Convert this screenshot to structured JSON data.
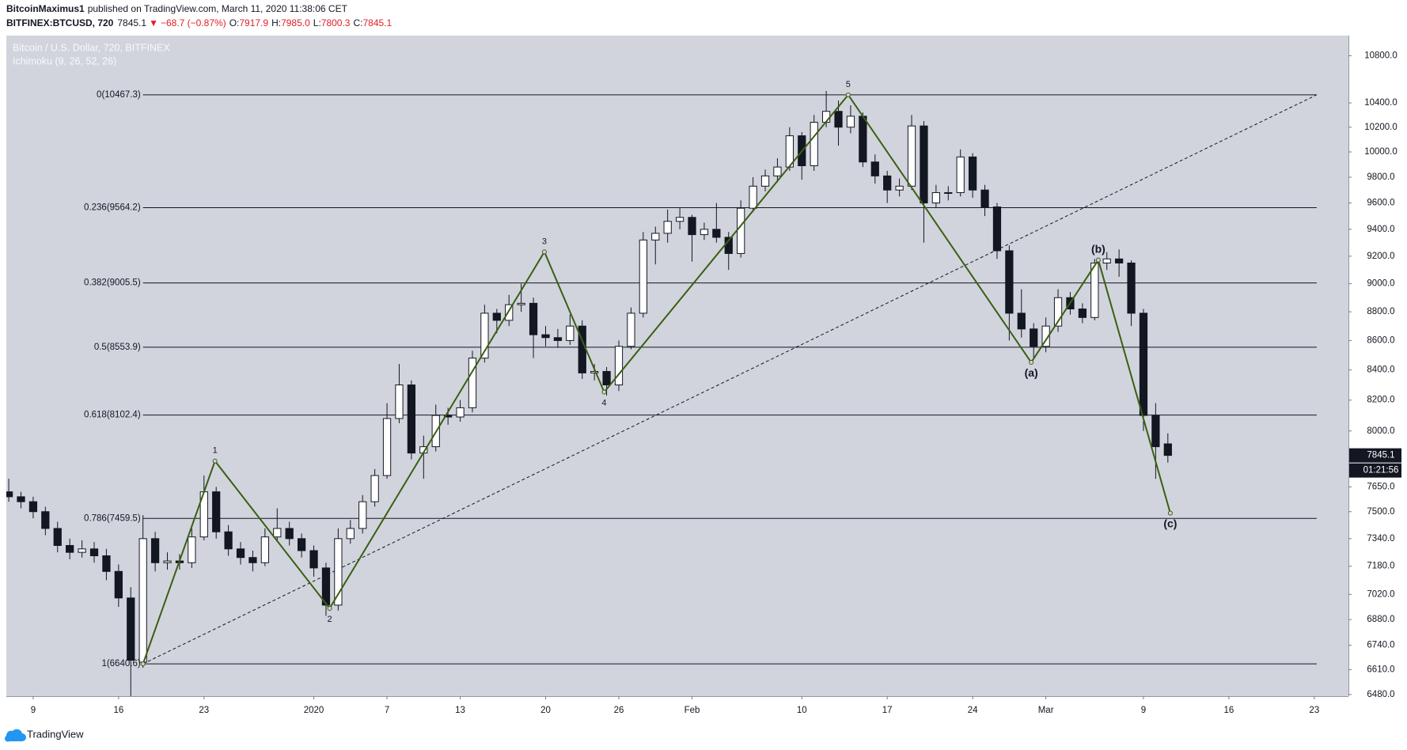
{
  "header": {
    "author": "BitcoinMaximus1",
    "published": "published on TradingView.com, March 11, 2020 11:38:06 CET"
  },
  "symbol_bar": {
    "symbol": "BITFINEX:BTCUSD, 720",
    "price": "7845.1",
    "arrow": "▼",
    "change": "−68.7 (−0.87%)",
    "ohlc": [
      {
        "key": "O:",
        "value": "7917.9"
      },
      {
        "key": "H:",
        "value": "7985.0"
      },
      {
        "key": "L:",
        "value": "7800.3"
      },
      {
        "key": "C:",
        "value": "7845.1"
      }
    ]
  },
  "chart_data": {
    "type": "candlestick",
    "title": "Bitcoin / U.S. Dollar, 720, BITFINEX",
    "subtitle": "Ichimoku (9, 26, 52, 26)",
    "x": [
      -2,
      -1,
      0,
      1,
      2,
      3,
      4,
      5,
      6,
      7,
      8,
      9,
      10,
      11,
      12,
      13,
      14,
      15,
      16,
      17,
      18,
      19,
      20,
      21,
      22,
      23,
      24,
      25,
      26,
      27,
      28,
      29,
      30,
      31,
      32,
      33,
      34,
      35,
      36,
      37,
      38,
      39,
      40,
      41,
      42,
      43,
      44,
      45,
      46,
      47,
      48,
      49,
      50,
      51,
      52,
      53,
      54,
      55,
      56,
      57,
      58,
      59,
      60,
      61,
      62,
      63,
      64,
      65,
      66,
      67,
      68,
      69,
      70,
      71,
      72,
      73,
      74,
      75,
      76,
      77,
      78,
      79,
      80,
      81,
      82,
      83,
      84,
      85,
      86,
      87,
      88,
      89,
      90,
      91,
      92,
      93
    ],
    "open": [
      7620,
      7590,
      7560,
      7500,
      7400,
      7300,
      7260,
      7280,
      7240,
      7150,
      7000,
      6650,
      7340,
      7200,
      7210,
      7200,
      7350,
      7620,
      7380,
      7280,
      7230,
      7200,
      7350,
      7400,
      7340,
      7270,
      7170,
      6960,
      7340,
      7400,
      7560,
      7720,
      8080,
      8300,
      7860,
      7900,
      8100,
      8090,
      8150,
      8480,
      8790,
      8740,
      8850,
      8860,
      8640,
      8620,
      8600,
      8700,
      8380,
      8390,
      8300,
      8560,
      8790,
      9320,
      9370,
      9460,
      9490,
      9360,
      9400,
      9340,
      9220,
      9560,
      9730,
      9810,
      9880,
      10130,
      9890,
      10240,
      10330,
      10200,
      10290,
      9920,
      9810,
      9700,
      9730,
      10210,
      9600,
      9680,
      9680,
      9960,
      9700,
      9570,
      9240,
      8790,
      8680,
      8560,
      8700,
      8900,
      8820,
      8760,
      9150,
      9180,
      9150,
      8790,
      8100,
      7917.9
    ],
    "high": [
      7700,
      7620,
      7590,
      7530,
      7440,
      7340,
      7330,
      7320,
      7280,
      7190,
      7060,
      7480,
      7380,
      7260,
      7250,
      7400,
      7720,
      7650,
      7420,
      7320,
      7270,
      7400,
      7520,
      7440,
      7370,
      7300,
      7200,
      7400,
      7450,
      7600,
      7760,
      8180,
      8440,
      8330,
      7970,
      8170,
      8150,
      8200,
      8530,
      8850,
      8820,
      8920,
      9000,
      8900,
      8700,
      8680,
      8780,
      8740,
      8440,
      8420,
      8600,
      8830,
      9380,
      9420,
      9550,
      9560,
      9510,
      9450,
      9600,
      9380,
      9620,
      9800,
      9860,
      9950,
      10200,
      10160,
      10300,
      10500,
      10420,
      10380,
      10320,
      9980,
      9850,
      9790,
      10300,
      10250,
      9740,
      9730,
      10020,
      9990,
      9740,
      9600,
      9280,
      8960,
      8720,
      8760,
      8960,
      8940,
      8860,
      9180,
      9230,
      9250,
      9170,
      8820,
      8180,
      7985.0
    ],
    "low": [
      7560,
      7520,
      7460,
      7360,
      7260,
      7220,
      7230,
      7200,
      7100,
      6950,
      6470,
      6620,
      7150,
      7160,
      7160,
      7170,
      7330,
      7340,
      7240,
      7190,
      7150,
      7180,
      7330,
      7300,
      7230,
      7120,
      6900,
      6930,
      7310,
      7370,
      7530,
      7700,
      8050,
      7820,
      7700,
      7870,
      8040,
      8060,
      8120,
      8450,
      8650,
      8700,
      8800,
      8480,
      8560,
      8550,
      8570,
      8340,
      8330,
      8230,
      8260,
      8540,
      8760,
      9140,
      9300,
      9400,
      9160,
      9320,
      9300,
      9100,
      9190,
      9530,
      9690,
      9760,
      9850,
      9780,
      9850,
      10200,
      10050,
      10150,
      9880,
      9750,
      9600,
      9650,
      9700,
      9300,
      9560,
      9620,
      9650,
      9640,
      9500,
      9180,
      8600,
      8620,
      8470,
      8520,
      8660,
      8780,
      8720,
      8740,
      9100,
      9050,
      8700,
      8000,
      7700,
      7800.3
    ],
    "close": [
      7590,
      7560,
      7500,
      7400,
      7300,
      7260,
      7280,
      7240,
      7150,
      7000,
      6660,
      7340,
      7200,
      7210,
      7200,
      7350,
      7620,
      7380,
      7280,
      7230,
      7200,
      7350,
      7400,
      7340,
      7270,
      7170,
      6960,
      7340,
      7400,
      7560,
      7720,
      8080,
      8300,
      7860,
      7900,
      8100,
      8090,
      8150,
      8480,
      8790,
      8740,
      8850,
      8860,
      8640,
      8620,
      8600,
      8700,
      8380,
      8390,
      8300,
      8560,
      8790,
      9320,
      9370,
      9460,
      9490,
      9360,
      9400,
      9340,
      9220,
      9560,
      9730,
      9810,
      9880,
      10130,
      9890,
      10240,
      10330,
      10200,
      10290,
      9920,
      9810,
      9700,
      9730,
      10210,
      9600,
      9680,
      9680,
      9960,
      9700,
      9570,
      9240,
      8790,
      8680,
      8560,
      8700,
      8900,
      8820,
      8760,
      9150,
      9180,
      9150,
      8790,
      8100,
      7900,
      7845.1
    ],
    "up_color": "#ffffff",
    "down_color": "#131722",
    "xlim": [
      -2.2,
      107.8
    ],
    "xticks": [
      {
        "value": 0,
        "label": "9"
      },
      {
        "value": 7,
        "label": "16"
      },
      {
        "value": 14,
        "label": "23"
      },
      {
        "value": 23,
        "label": "2020"
      },
      {
        "value": 29,
        "label": "7"
      },
      {
        "value": 35,
        "label": "13"
      },
      {
        "value": 42,
        "label": "20"
      },
      {
        "value": 48,
        "label": "26"
      },
      {
        "value": 54,
        "label": "Feb"
      },
      {
        "value": 63,
        "label": "10"
      },
      {
        "value": 70,
        "label": "17"
      },
      {
        "value": 77,
        "label": "24"
      },
      {
        "value": 83,
        "label": "Mar"
      },
      {
        "value": 91,
        "label": "9"
      },
      {
        "value": 98,
        "label": "16"
      },
      {
        "value": 105,
        "label": "23"
      }
    ],
    "ylim": [
      6471,
      10975
    ],
    "log_y": true,
    "grid": false,
    "yticks": [
      {
        "value": 10800,
        "label": "10800.0"
      },
      {
        "value": 10400,
        "label": "10400.0"
      },
      {
        "value": 10200,
        "label": "10200.0"
      },
      {
        "value": 10000,
        "label": "10000.0"
      },
      {
        "value": 9800,
        "label": "9800.0"
      },
      {
        "value": 9600,
        "label": "9600.0"
      },
      {
        "value": 9400,
        "label": "9400.0"
      },
      {
        "value": 9200,
        "label": "9200.0"
      },
      {
        "value": 9000,
        "label": "9000.0"
      },
      {
        "value": 8800,
        "label": "8800.0"
      },
      {
        "value": 8600,
        "label": "8600.0"
      },
      {
        "value": 8400,
        "label": "8400.0"
      },
      {
        "value": 8200,
        "label": "8200.0"
      },
      {
        "value": 8000,
        "label": "8000.0"
      },
      {
        "value": 7650,
        "label": "7650.0"
      },
      {
        "value": 7500,
        "label": "7500.0"
      },
      {
        "value": 7340,
        "label": "7340.0"
      },
      {
        "value": 7180,
        "label": "7180.0"
      },
      {
        "value": 7020,
        "label": "7020.0"
      },
      {
        "value": 6880,
        "label": "6880.0"
      },
      {
        "value": 6740,
        "label": "6740.0"
      },
      {
        "value": 6610,
        "label": "6610.0"
      },
      {
        "value": 6480,
        "label": "6480.0"
      }
    ],
    "fib_levels": [
      {
        "value": 10467.3,
        "label": "0(10467.3)"
      },
      {
        "value": 9564.2,
        "label": "0.236(9564.2)"
      },
      {
        "value": 9005.5,
        "label": "0.382(9005.5)"
      },
      {
        "value": 8553.9,
        "label": "0.5(8553.9)"
      },
      {
        "value": 8102.4,
        "label": "0.618(8102.4)"
      },
      {
        "value": 7459.5,
        "label": "0.786(7459.5)"
      },
      {
        "value": 6640.6,
        "label": "1(6640.6)"
      }
    ],
    "trend_line": {
      "x": [
        9.0,
        105.2
      ],
      "y": [
        6640.6,
        10467.3
      ]
    },
    "waves": {
      "color": "#3b5e14",
      "x": [
        9.0,
        14.9,
        24.3,
        41.9,
        46.8,
        66.8,
        81.8,
        87.3,
        93.2
      ],
      "y": [
        6640.6,
        7810,
        6942,
        9232,
        8253,
        10467.3,
        8451,
        9172,
        7491
      ],
      "labels": [
        null,
        "1",
        "2",
        "3",
        "4",
        "5",
        "(a)",
        "(b)",
        "(c)"
      ]
    },
    "last_price": 7845.1,
    "countdown": "01:21:56"
  },
  "footer": {
    "brand": "TradingView"
  }
}
